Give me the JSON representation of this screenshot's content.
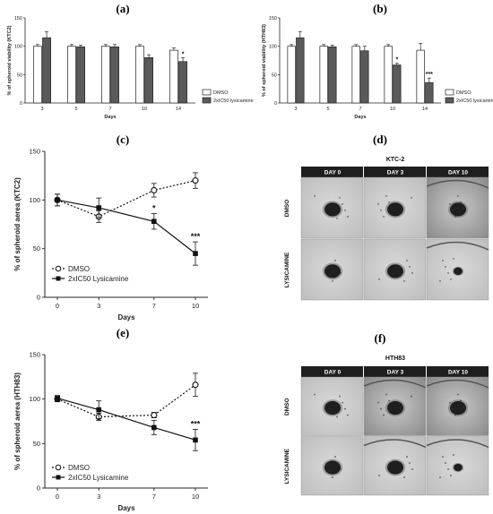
{
  "panel_labels": [
    "(a)",
    "(b)",
    "(c)",
    "(d)",
    "(e)",
    "(f)"
  ],
  "chart_data": [
    {
      "id": "a",
      "type": "bar",
      "ylabel": "% of spheroid viability (KTC2)",
      "xlabel": "Days",
      "categories": [
        "3",
        "5",
        "7",
        "10",
        "14"
      ],
      "ylim": [
        0,
        150
      ],
      "yticks": [
        "0",
        "50",
        "100",
        "150"
      ],
      "series": [
        {
          "name": "DMSO",
          "color": "#ffffff",
          "values": [
            100,
            100,
            100,
            100,
            93
          ],
          "errors": [
            3,
            3,
            3,
            3,
            4
          ]
        },
        {
          "name": "2xIC50 lysicamine",
          "color": "#5a5a5a",
          "values": [
            115,
            99,
            99,
            80,
            73
          ],
          "errors": [
            11,
            3,
            4,
            5,
            7
          ]
        }
      ],
      "annotations": [
        {
          "category": "14",
          "series": 1,
          "text": "*"
        }
      ]
    },
    {
      "id": "b",
      "type": "bar",
      "ylabel": "% of spheroid viability (HTH83)",
      "xlabel": "Days",
      "categories": [
        "3",
        "5",
        "7",
        "10",
        "14"
      ],
      "ylim": [
        0,
        150
      ],
      "yticks": [
        "0",
        "50",
        "100",
        "150"
      ],
      "series": [
        {
          "name": "DMSO",
          "color": "#ffffff",
          "values": [
            100,
            100,
            100,
            100,
            93
          ],
          "errors": [
            3,
            3,
            3,
            3,
            12
          ]
        },
        {
          "name": "2xIC50 lysicamine",
          "color": "#5a5a5a",
          "values": [
            115,
            99,
            92,
            67,
            36
          ],
          "errors": [
            11,
            3,
            8,
            3,
            8
          ]
        }
      ],
      "annotations": [
        {
          "category": "10",
          "series": 1,
          "text": "*"
        },
        {
          "category": "14",
          "series": 1,
          "text": "***"
        }
      ]
    },
    {
      "id": "c",
      "type": "line",
      "ylabel": "% of spheroid aerea (KTC2)",
      "xlabel": "Days",
      "x": [
        0,
        3,
        7,
        10
      ],
      "xticks": [
        "0",
        "3",
        "7",
        "10"
      ],
      "ylim": [
        0,
        150
      ],
      "yticks": [
        "0",
        "50",
        "100",
        "150"
      ],
      "series": [
        {
          "name": "DMSO",
          "style": "dotted-open",
          "values": [
            100,
            83,
            110,
            120
          ],
          "errors": [
            6,
            6,
            7,
            8
          ]
        },
        {
          "name": "2xIC50 Lysicamine",
          "style": "solid-filled",
          "values": [
            100,
            92,
            78,
            45
          ],
          "errors": [
            6,
            10,
            8,
            12
          ]
        }
      ],
      "annotations": [
        {
          "x": 7,
          "series": 1,
          "text": "*"
        },
        {
          "x": 10,
          "series": 1,
          "text": "***"
        }
      ]
    },
    {
      "id": "e",
      "type": "line",
      "ylabel": "% of spheroid aerea (HTH83)",
      "xlabel": "Days",
      "x": [
        0,
        3,
        7,
        10
      ],
      "xticks": [
        "0",
        "3",
        "7",
        "10"
      ],
      "ylim": [
        0,
        150
      ],
      "yticks": [
        "0",
        "50",
        "100",
        "150"
      ],
      "series": [
        {
          "name": "DMSO",
          "style": "dotted-open",
          "values": [
            100,
            80,
            82,
            116
          ],
          "errors": [
            3,
            4,
            3,
            13
          ]
        },
        {
          "name": "2xIC50 Lysicamine",
          "style": "solid-filled",
          "values": [
            101,
            88,
            68,
            54
          ],
          "errors": [
            3,
            10,
            8,
            12
          ]
        }
      ],
      "annotations": [
        {
          "x": 10,
          "series": 1,
          "text": "***"
        }
      ]
    }
  ],
  "micrographs": [
    {
      "id": "d",
      "title": "KTC-2",
      "columns": [
        "DAY 0",
        "DAY 3",
        "DAY 10"
      ],
      "rows": [
        "DMSO",
        "LYSICAMINE"
      ]
    },
    {
      "id": "f",
      "title": "HTH83",
      "columns": [
        "DAY 0",
        "DAY 3",
        "DAY 10"
      ],
      "rows": [
        "DMSO",
        "LYSICAMINE"
      ]
    }
  ]
}
